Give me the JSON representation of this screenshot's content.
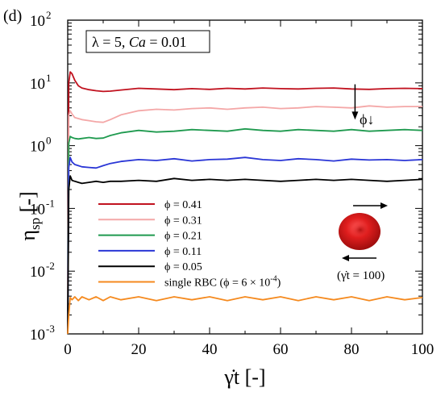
{
  "panel_label": "(d)",
  "condition_box": "λ = 5, Ca = 0.01",
  "condition_parts": {
    "lambda": "λ",
    "lambda_value": " = 5, ",
    "ca": "Ca",
    "ca_value": " = 0.01"
  },
  "arrow_label": "ϕ↓",
  "inset": {
    "caption": "(γ̇t = 100)"
  },
  "chart_data": {
    "type": "line",
    "xlabel": "γ̇t [-]",
    "ylabel": "ηsp [-]",
    "xlim": [
      0,
      100
    ],
    "ylim": [
      0.001,
      100
    ],
    "yscale": "log",
    "x_ticks": [
      "0",
      "20",
      "40",
      "60",
      "80",
      "100"
    ],
    "y_ticks": [
      "10-3",
      "10-2",
      "10-1",
      "100",
      "101",
      "102"
    ],
    "grid": false,
    "legend_position": "lower-left",
    "x": [
      0.3,
      0.7,
      1.2,
      2,
      3,
      4,
      6,
      8,
      10,
      12,
      15,
      20,
      25,
      30,
      35,
      40,
      45,
      50,
      55,
      60,
      65,
      70,
      75,
      80,
      85,
      90,
      95,
      100
    ],
    "series": [
      {
        "name": "ϕ = 0.41",
        "color": "#c1121f",
        "values": [
          10,
          15,
          14,
          11,
          9,
          8.3,
          7.8,
          7.5,
          7.3,
          7.4,
          7.7,
          8.2,
          8.0,
          7.8,
          8.1,
          7.9,
          8.2,
          8.0,
          8.3,
          8.1,
          8.0,
          8.2,
          8.3,
          8.0,
          7.9,
          8.1,
          8.2,
          8.1
        ]
      },
      {
        "name": "ϕ = 0.31",
        "color": "#f4a7a7",
        "values": [
          3.0,
          3.6,
          3.2,
          2.8,
          2.7,
          2.6,
          2.5,
          2.4,
          2.35,
          2.6,
          3.1,
          3.6,
          3.8,
          3.7,
          3.9,
          4.0,
          3.8,
          4.0,
          4.1,
          3.9,
          4.0,
          4.2,
          4.1,
          4.0,
          4.3,
          4.1,
          4.2,
          4.2
        ]
      },
      {
        "name": "ϕ = 0.21",
        "color": "#1f9a4f",
        "values": [
          1.1,
          1.4,
          1.35,
          1.3,
          1.28,
          1.3,
          1.35,
          1.3,
          1.32,
          1.45,
          1.6,
          1.75,
          1.65,
          1.7,
          1.8,
          1.75,
          1.7,
          1.85,
          1.75,
          1.7,
          1.8,
          1.75,
          1.7,
          1.8,
          1.7,
          1.75,
          1.8,
          1.75
        ]
      },
      {
        "name": "ϕ = 0.11",
        "color": "#2a36d6",
        "values": [
          0.45,
          0.65,
          0.55,
          0.5,
          0.48,
          0.46,
          0.45,
          0.44,
          0.48,
          0.52,
          0.56,
          0.6,
          0.58,
          0.62,
          0.57,
          0.6,
          0.61,
          0.65,
          0.6,
          0.58,
          0.62,
          0.6,
          0.57,
          0.61,
          0.59,
          0.6,
          0.58,
          0.6
        ]
      },
      {
        "name": "ϕ = 0.05",
        "color": "#000000",
        "values": [
          0.2,
          0.33,
          0.28,
          0.27,
          0.26,
          0.25,
          0.26,
          0.27,
          0.26,
          0.27,
          0.27,
          0.28,
          0.27,
          0.3,
          0.28,
          0.29,
          0.28,
          0.29,
          0.28,
          0.27,
          0.28,
          0.29,
          0.28,
          0.29,
          0.28,
          0.27,
          0.28,
          0.29
        ]
      },
      {
        "name": "single RBC (ϕ = 6 × 10-4)",
        "color": "#f58a1f",
        "values": [
          0.002,
          0.0038,
          0.0035,
          0.0039,
          0.0034,
          0.0039,
          0.0035,
          0.0039,
          0.0034,
          0.0039,
          0.0035,
          0.0039,
          0.0034,
          0.0039,
          0.0035,
          0.0039,
          0.0034,
          0.0039,
          0.0035,
          0.0039,
          0.0034,
          0.0039,
          0.0035,
          0.0039,
          0.0034,
          0.0039,
          0.0035,
          0.0038
        ]
      }
    ],
    "annotation_arrow": {
      "x": 81,
      "y_from": 9.5,
      "y_to": 2.6
    }
  }
}
